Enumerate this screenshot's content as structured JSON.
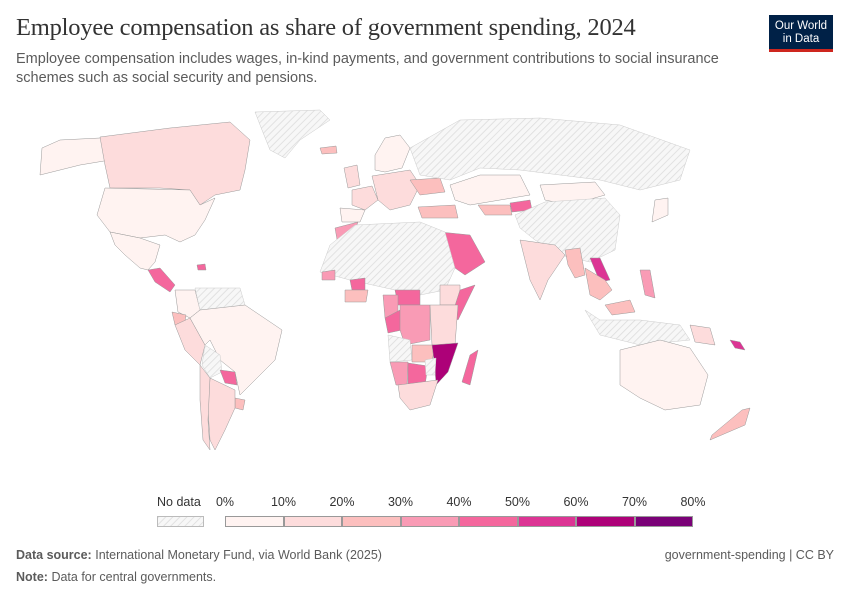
{
  "header": {
    "title": "Employee compensation as share of government spending, 2024",
    "subtitle": "Employee compensation includes wages, in-kind payments, and government contributions to social insurance schemes such as social security and pensions.",
    "logo_line1": "Our World",
    "logo_line2": "in Data"
  },
  "chart_data": {
    "type": "choropleth-map",
    "title": "Employee compensation as share of government spending, 2024",
    "unit": "%",
    "legend": {
      "position": "bottom",
      "no_data_label": "No data",
      "bins": [
        {
          "from": 0,
          "to": 10,
          "color": "#fff3f1"
        },
        {
          "from": 10,
          "to": 20,
          "color": "#fddcdc"
        },
        {
          "from": 20,
          "to": 30,
          "color": "#fcbfbe"
        },
        {
          "from": 30,
          "to": 40,
          "color": "#f99bb5"
        },
        {
          "from": 40,
          "to": 50,
          "color": "#f4679d"
        },
        {
          "from": 50,
          "to": 60,
          "color": "#dc3594"
        },
        {
          "from": 60,
          "to": 70,
          "color": "#ad0178"
        },
        {
          "from": 70,
          "to": 80,
          "color": "#7a0177"
        }
      ],
      "tick_labels": [
        "0%",
        "10%",
        "20%",
        "30%",
        "40%",
        "50%",
        "60%",
        "70%",
        "80%"
      ]
    },
    "regions": [
      {
        "name": "Alaska/USA",
        "bin": 0
      },
      {
        "name": "Canada",
        "bin": 1
      },
      {
        "name": "United States",
        "bin": 0
      },
      {
        "name": "Mexico",
        "bin": 0
      },
      {
        "name": "Greenland",
        "bin": null
      },
      {
        "name": "Central America",
        "bin": 4
      },
      {
        "name": "Dominican Republic",
        "bin": 4
      },
      {
        "name": "Colombia",
        "bin": 0
      },
      {
        "name": "Venezuela/Guyana",
        "bin": null
      },
      {
        "name": "Ecuador",
        "bin": 2
      },
      {
        "name": "Peru",
        "bin": 1
      },
      {
        "name": "Brazil",
        "bin": 0
      },
      {
        "name": "Bolivia",
        "bin": null
      },
      {
        "name": "Paraguay",
        "bin": 4
      },
      {
        "name": "Uruguay",
        "bin": 2
      },
      {
        "name": "Argentina",
        "bin": 1
      },
      {
        "name": "Chile",
        "bin": 1
      },
      {
        "name": "Iceland",
        "bin": 2
      },
      {
        "name": "Scandinavia",
        "bin": 0
      },
      {
        "name": "UK & Ireland",
        "bin": 1
      },
      {
        "name": "France",
        "bin": 1
      },
      {
        "name": "Spain & Portugal",
        "bin": 0
      },
      {
        "name": "Central Europe",
        "bin": 1
      },
      {
        "name": "Ukraine",
        "bin": 2
      },
      {
        "name": "Turkey",
        "bin": 2
      },
      {
        "name": "Russia",
        "bin": null
      },
      {
        "name": "Kazakhstan",
        "bin": 0
      },
      {
        "name": "Mongolia",
        "bin": 0
      },
      {
        "name": "Kyrgyzstan",
        "bin": 4
      },
      {
        "name": "Uzbekistan",
        "bin": 2
      },
      {
        "name": "China",
        "bin": null
      },
      {
        "name": "Japan",
        "bin": 0
      },
      {
        "name": "India",
        "bin": 1
      },
      {
        "name": "Bangladesh/Myanmar",
        "bin": 2
      },
      {
        "name": "Laos",
        "bin": 5
      },
      {
        "name": "Thailand/Cambodia",
        "bin": 2
      },
      {
        "name": "Philippines",
        "bin": 3
      },
      {
        "name": "Malaysia",
        "bin": 2
      },
      {
        "name": "Indonesia",
        "bin": null
      },
      {
        "name": "Papua New Guinea",
        "bin": 1
      },
      {
        "name": "Australia",
        "bin": 0
      },
      {
        "name": "New Zealand",
        "bin": 2
      },
      {
        "name": "Solomon Islands",
        "bin": 5
      },
      {
        "name": "Saudi Arabia",
        "bin": 4
      },
      {
        "name": "Morocco",
        "bin": 3
      },
      {
        "name": "North Africa",
        "bin": null
      },
      {
        "name": "Senegal",
        "bin": 3
      },
      {
        "name": "Burkina Faso",
        "bin": 4
      },
      {
        "name": "Ghana/Cote d'Ivoire",
        "bin": 2
      },
      {
        "name": "Central African Rep.",
        "bin": 4
      },
      {
        "name": "Cameroon",
        "bin": 3
      },
      {
        "name": "Gabon/Congo",
        "bin": 4
      },
      {
        "name": "DR Congo",
        "bin": 3
      },
      {
        "name": "Ethiopia",
        "bin": 1
      },
      {
        "name": "Somalia",
        "bin": 4
      },
      {
        "name": "Kenya/Tanzania",
        "bin": 1
      },
      {
        "name": "Angola",
        "bin": null
      },
      {
        "name": "Zambia",
        "bin": 2
      },
      {
        "name": "Mozambique",
        "bin": 6
      },
      {
        "name": "Madagascar",
        "bin": 4
      },
      {
        "name": "Namibia",
        "bin": 3
      },
      {
        "name": "Botswana",
        "bin": 4
      },
      {
        "name": "Zimbabwe",
        "bin": null
      },
      {
        "name": "South Africa",
        "bin": 1
      }
    ]
  },
  "footer": {
    "source_label": "Data source:",
    "source_text": "International Monetary Fund, via World Bank (2025)",
    "note_label": "Note:",
    "note_text": "Data for central governments.",
    "right_text": "government-spending | CC BY"
  }
}
